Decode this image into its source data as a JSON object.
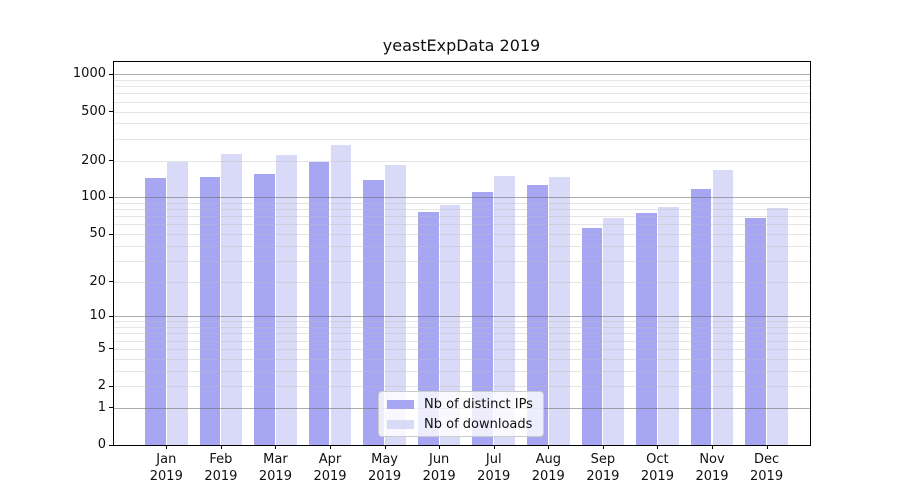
{
  "chart_data": {
    "type": "bar",
    "title": "yeastExpData 2019",
    "categories": [
      "Jan",
      "Feb",
      "Mar",
      "Apr",
      "May",
      "Jun",
      "Jul",
      "Aug",
      "Sep",
      "Oct",
      "Nov",
      "Dec"
    ],
    "category_line2": "2019",
    "series": [
      {
        "name": "Nb of distinct IPs",
        "color": "#a6a6f2",
        "values": [
          143,
          148,
          155,
          196,
          139,
          76,
          110,
          127,
          56,
          74,
          117,
          68
        ]
      },
      {
        "name": "Nb of downloads",
        "color": "#d9d9f8",
        "values": [
          195,
          228,
          222,
          266,
          184,
          86,
          150,
          148,
          68,
          84,
          168,
          82
        ]
      }
    ],
    "yscale": "log1p",
    "ylim": [
      0,
      1260
    ],
    "yticks": [
      1000,
      500,
      200,
      100,
      50,
      20,
      10,
      5,
      2,
      1,
      0
    ],
    "grid": {
      "major_values": [
        1,
        10,
        100,
        1000
      ],
      "minor_rule": "n×decade for n=2..9, decades 1,10,100"
    },
    "legend_position": "inside-bottom-center"
  },
  "colors": {
    "bar_series_1": "#a6a6f2",
    "bar_series_2": "#d9d9f8",
    "axis": "#000000",
    "text": "#111111",
    "grid_major": "rgba(105,105,105,0.55)",
    "grid_minor": "rgba(190,190,190,0.40)",
    "legend_border": "#cccccc",
    "legend_bg": "rgba(255,255,255,0.8)"
  }
}
